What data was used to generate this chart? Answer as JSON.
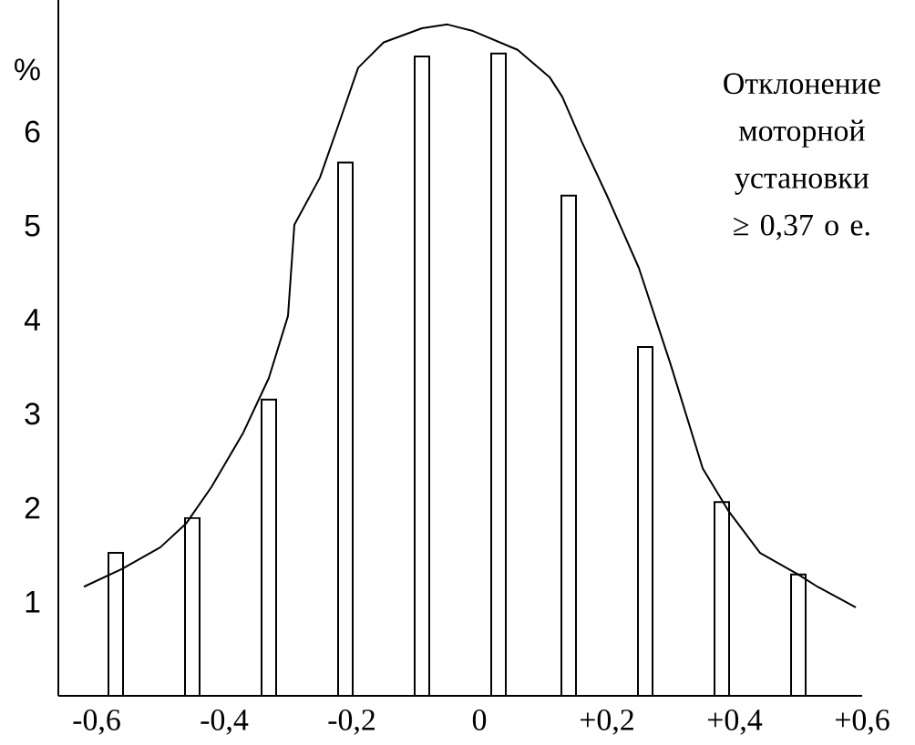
{
  "chart_data": {
    "type": "bar",
    "ylabel": "%",
    "annotations": [
      "Отклонение моторной установки ≥ 0,37 о е."
    ],
    "x": [
      -0.57,
      -0.45,
      -0.33,
      -0.21,
      -0.09,
      0.03,
      0.14,
      0.26,
      0.38,
      0.5
    ],
    "series": [
      {
        "color": "#ffffff",
        "values": [
          1.52,
          1.89,
          3.15,
          5.67,
          6.8,
          6.83,
          5.32,
          3.71,
          2.06,
          1.29
        ]
      },
      {
        "type": "line",
        "color": "#000000",
        "x": [
          -0.62,
          -0.56,
          -0.5,
          -0.46,
          -0.42,
          -0.37,
          -0.33,
          -0.3,
          -0.29,
          -0.25,
          -0.22,
          -0.19,
          -0.15,
          -0.09,
          -0.05,
          -0.01,
          0.06,
          0.11,
          0.13,
          0.16,
          0.2,
          0.25,
          0.3,
          0.35,
          0.39,
          0.44,
          0.5,
          0.53,
          0.59
        ],
        "values": [
          1.16,
          1.35,
          1.58,
          1.83,
          2.22,
          2.8,
          3.38,
          4.04,
          5.01,
          5.51,
          6.09,
          6.68,
          6.95,
          7.1,
          7.14,
          7.07,
          6.87,
          6.58,
          6.37,
          5.9,
          5.32,
          4.55,
          3.52,
          2.42,
          1.97,
          1.52,
          1.29,
          1.16,
          0.94
        ]
      }
    ],
    "xlim": [
      -0.66,
      0.6
    ],
    "ylim": [
      0,
      7.4
    ],
    "xticks": [
      {
        "value": -0.6,
        "label": "-0,6"
      },
      {
        "value": -0.4,
        "label": "-0,4"
      },
      {
        "value": -0.2,
        "label": "-0,2"
      },
      0,
      {
        "value": 0.2,
        "label": "+0,2"
      },
      {
        "value": 0.4,
        "label": "+0,4"
      },
      {
        "value": 0.6,
        "label": "+0,6"
      }
    ],
    "yticks": [
      1,
      2,
      3,
      4,
      5,
      6
    ]
  }
}
